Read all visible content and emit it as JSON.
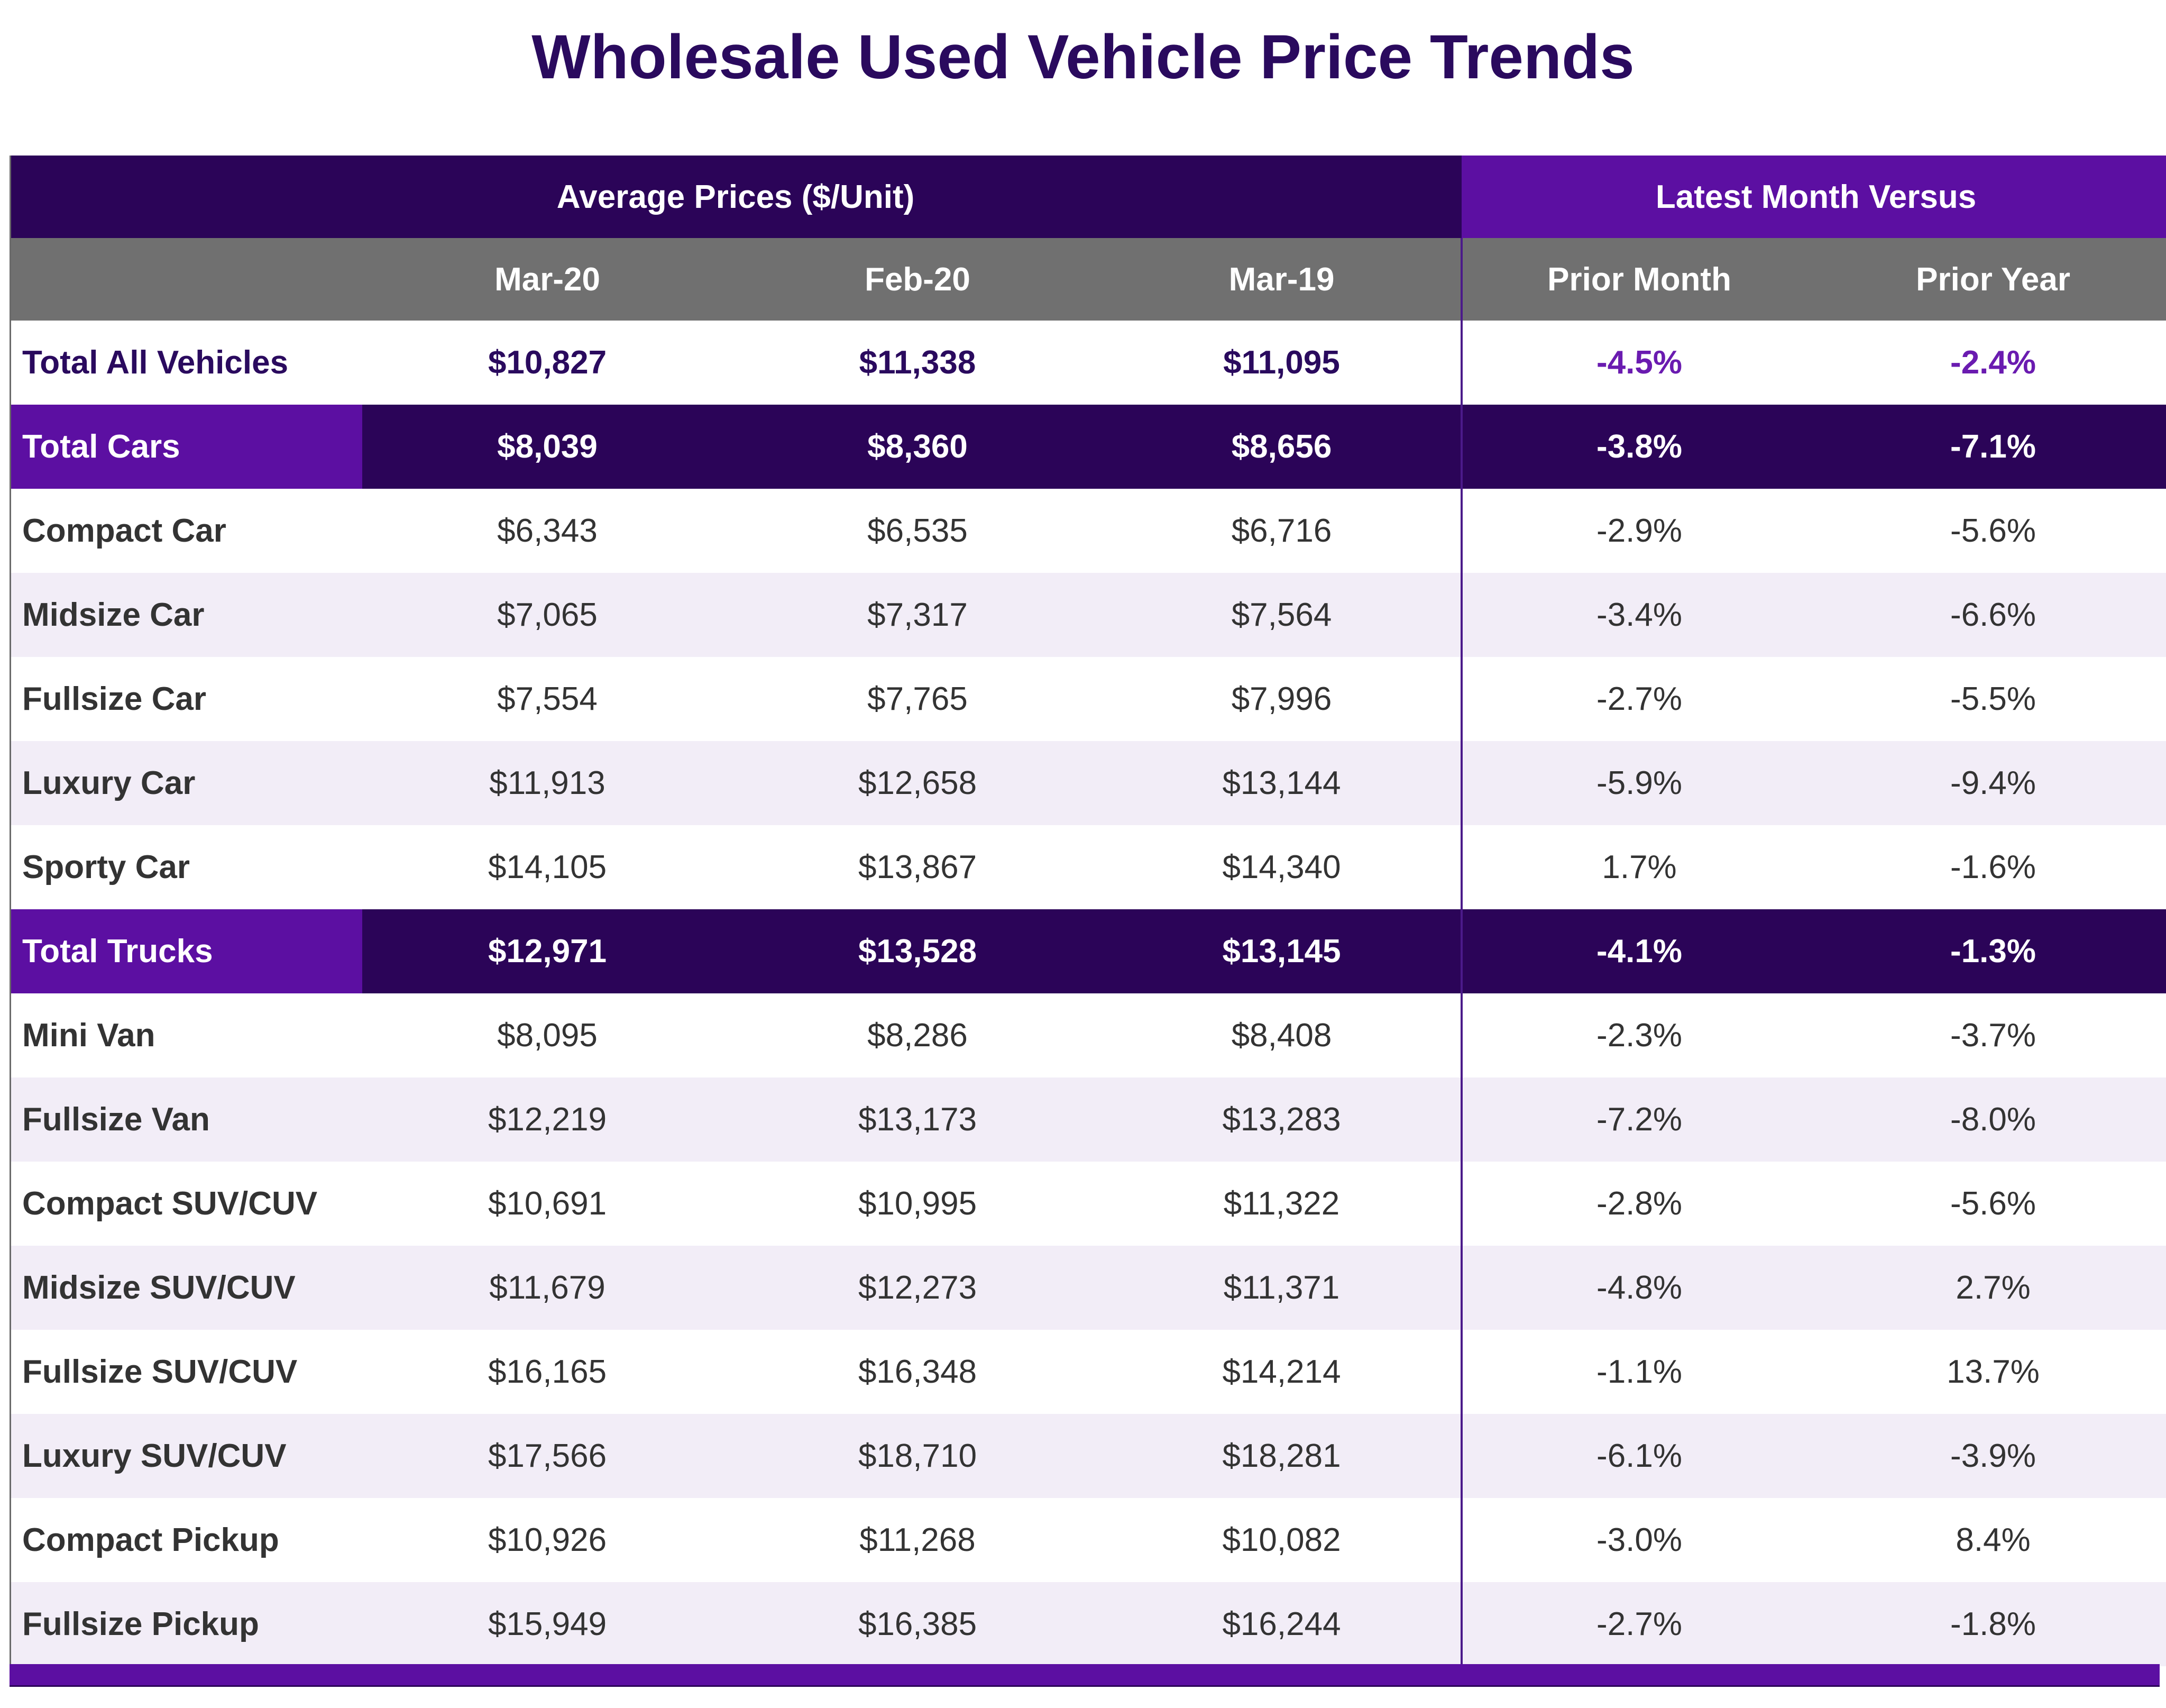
{
  "chart_data": {
    "type": "table",
    "title": "Wholesale Used Vehicle Price Trends",
    "group_headers": {
      "average_prices": "Average Prices ($/Unit)",
      "latest_month_versus": "Latest Month Versus"
    },
    "columns": [
      "",
      "Mar-20",
      "Feb-20",
      "Mar-19",
      "Prior Month",
      "Prior Year"
    ],
    "rows": [
      {
        "kind": "total",
        "label": "Total All Vehicles",
        "values": [
          "$10,827",
          "$11,338",
          "$11,095",
          "-4.5%",
          "-2.4%"
        ]
      },
      {
        "kind": "section",
        "label": "Total Cars",
        "values": [
          "$8,039",
          "$8,360",
          "$8,656",
          "-3.8%",
          "-7.1%"
        ]
      },
      {
        "kind": "row",
        "label": "Compact Car",
        "values": [
          "$6,343",
          "$6,535",
          "$6,716",
          "-2.9%",
          "-5.6%"
        ]
      },
      {
        "kind": "row",
        "label": "Midsize Car",
        "values": [
          "$7,065",
          "$7,317",
          "$7,564",
          "-3.4%",
          "-6.6%"
        ]
      },
      {
        "kind": "row",
        "label": "Fullsize Car",
        "values": [
          "$7,554",
          "$7,765",
          "$7,996",
          "-2.7%",
          "-5.5%"
        ]
      },
      {
        "kind": "row",
        "label": "Luxury Car",
        "values": [
          "$11,913",
          "$12,658",
          "$13,144",
          "-5.9%",
          "-9.4%"
        ]
      },
      {
        "kind": "row",
        "label": "Sporty Car",
        "values": [
          "$14,105",
          "$13,867",
          "$14,340",
          "1.7%",
          "-1.6%"
        ]
      },
      {
        "kind": "section",
        "label": "Total Trucks",
        "values": [
          "$12,971",
          "$13,528",
          "$13,145",
          "-4.1%",
          "-1.3%"
        ]
      },
      {
        "kind": "row",
        "label": "Mini Van",
        "values": [
          "$8,095",
          "$8,286",
          "$8,408",
          "-2.3%",
          "-3.7%"
        ]
      },
      {
        "kind": "row",
        "label": "Fullsize Van",
        "values": [
          "$12,219",
          "$13,173",
          "$13,283",
          "-7.2%",
          "-8.0%"
        ]
      },
      {
        "kind": "row",
        "label": "Compact SUV/CUV",
        "values": [
          "$10,691",
          "$10,995",
          "$11,322",
          "-2.8%",
          "-5.6%"
        ]
      },
      {
        "kind": "row",
        "label": "Midsize SUV/CUV",
        "values": [
          "$11,679",
          "$12,273",
          "$11,371",
          "-4.8%",
          "2.7%"
        ]
      },
      {
        "kind": "row",
        "label": "Fullsize SUV/CUV",
        "values": [
          "$16,165",
          "$16,348",
          "$14,214",
          "-1.1%",
          "13.7%"
        ]
      },
      {
        "kind": "row",
        "label": "Luxury SUV/CUV",
        "values": [
          "$17,566",
          "$18,710",
          "$18,281",
          "-6.1%",
          "-3.9%"
        ]
      },
      {
        "kind": "row",
        "label": "Compact Pickup",
        "values": [
          "$10,926",
          "$11,268",
          "$10,082",
          "-3.0%",
          "8.4%"
        ]
      },
      {
        "kind": "row",
        "label": "Fullsize Pickup",
        "values": [
          "$15,949",
          "$16,385",
          "$16,244",
          "-2.7%",
          "-1.8%"
        ]
      }
    ]
  },
  "colors": {
    "title": "#2a0a5e",
    "dark_purple": "#2b0458",
    "accent_purple": "#5c0fa2",
    "header_gray": "#707070",
    "stripe": "#f2edf7"
  }
}
